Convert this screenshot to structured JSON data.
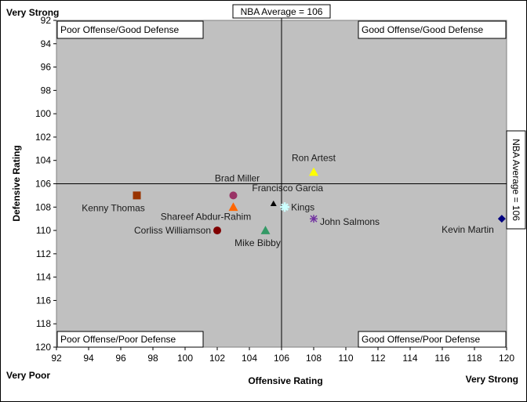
{
  "chart_data": {
    "type": "scatter",
    "title": "",
    "xlabel": "Offensive Rating",
    "ylabel": "Defensive Rating",
    "xlim": [
      92,
      120
    ],
    "ylim": [
      92,
      120
    ],
    "y_inverted": true,
    "x_ticks": [
      92,
      94,
      96,
      98,
      100,
      102,
      104,
      106,
      108,
      110,
      112,
      114,
      116,
      118,
      120
    ],
    "y_ticks": [
      92,
      94,
      96,
      98,
      100,
      102,
      104,
      106,
      108,
      110,
      112,
      114,
      116,
      118,
      120
    ],
    "grid": false,
    "plot_background": "#c0c0c0",
    "reference_lines": [
      {
        "axis": "x",
        "value": 106,
        "label": "NBA Average = 106"
      },
      {
        "axis": "y",
        "value": 106,
        "label": "NBA Average = 106"
      }
    ],
    "quadrant_labels": {
      "top_left": "Poor Offense/Good Defense",
      "top_right": "Good Offense/Good Defense",
      "bottom_left": "Poor Offense/Poor Defense",
      "bottom_right": "Good Offense/Poor Defense"
    },
    "corner_labels": {
      "top_left": "Very Strong",
      "bottom_left": "Very Poor",
      "bottom_right": "Very Strong"
    },
    "series": [
      {
        "name": "Ron Artest",
        "x": 108,
        "y": 105,
        "marker": "triangle",
        "color": "#ffff00"
      },
      {
        "name": "Brad Miller",
        "x": 103,
        "y": 107,
        "marker": "circle",
        "color": "#993366"
      },
      {
        "name": "Francisco Garcia",
        "x": 105.5,
        "y": 107.7,
        "marker": "triangle",
        "color": "#000000"
      },
      {
        "name": "Kings",
        "x": 106.2,
        "y": 108,
        "marker": "star",
        "color": "#ccffff"
      },
      {
        "name": "Kenny Thomas",
        "x": 97,
        "y": 107,
        "marker": "square",
        "color": "#993300"
      },
      {
        "name": "Shareef Abdur-Rahim",
        "x": 103,
        "y": 108,
        "marker": "triangle",
        "color": "#ff6600"
      },
      {
        "name": "John Salmons",
        "x": 108,
        "y": 109,
        "marker": "asterisk",
        "color": "#7030a0"
      },
      {
        "name": "Kevin Martin",
        "x": 119.7,
        "y": 109,
        "marker": "diamond",
        "color": "#000080"
      },
      {
        "name": "Corliss Williamson",
        "x": 102,
        "y": 110,
        "marker": "circle",
        "color": "#800000"
      },
      {
        "name": "Mike Bibby",
        "x": 105,
        "y": 110,
        "marker": "triangle",
        "color": "#339966"
      }
    ]
  }
}
